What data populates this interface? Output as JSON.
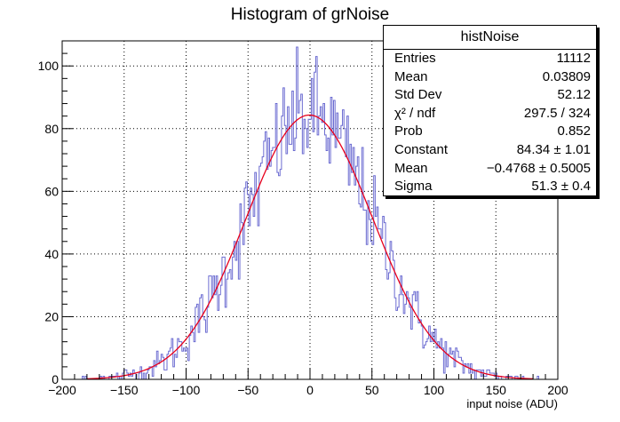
{
  "title": "Histogram of grNoise",
  "stats": {
    "title": "histNoise",
    "rows": [
      {
        "label": "Entries",
        "value": "11112"
      },
      {
        "label": "Mean",
        "value": "0.03809"
      },
      {
        "label": "Std Dev",
        "value": "52.12"
      },
      {
        "label": "χ² / ndf",
        "value": "297.5 / 324"
      },
      {
        "label": "Prob",
        "value": "0.852"
      },
      {
        "label": "Constant",
        "value": "84.34 ± 1.01"
      },
      {
        "label": "Mean",
        "value": "−0.4768 ± 0.5005"
      },
      {
        "label": "Sigma",
        "value": "51.3 ± 0.4"
      }
    ]
  },
  "chart_data": {
    "type": "histogram",
    "title": "Histogram of grNoise",
    "xlabel": "input noise (ADU)",
    "ylabel": "",
    "xlim": [
      -200,
      200
    ],
    "ylim": [
      0,
      108
    ],
    "x_ticks": [
      -200,
      -150,
      -100,
      -50,
      0,
      50,
      100,
      150,
      200
    ],
    "x_tick_labels": [
      "−200",
      "−150",
      "−100",
      "−50",
      "0",
      "50",
      "100",
      "150",
      "200"
    ],
    "y_ticks": [
      0,
      20,
      40,
      60,
      80,
      100
    ],
    "y_tick_labels": [
      "0",
      "20",
      "40",
      "60",
      "80",
      "100"
    ],
    "grid": true,
    "hist_color": "#6b6bd1",
    "fit_color": "#e8001c",
    "bin_width": 1.2,
    "hist_range": [
      -185,
      185
    ],
    "fit": {
      "function": "gaus",
      "constant": 84.34,
      "mean": -0.4768,
      "sigma": 51.3
    }
  }
}
